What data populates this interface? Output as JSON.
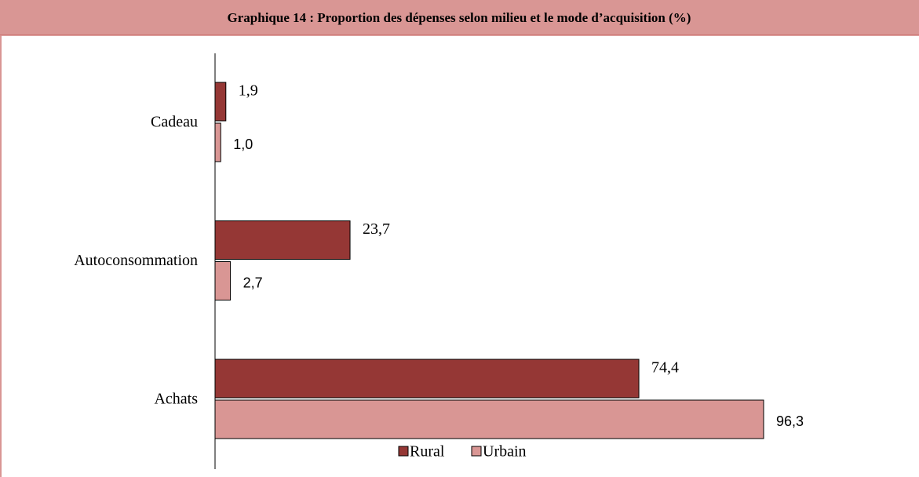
{
  "chart_data": {
    "type": "bar",
    "orientation": "horizontal",
    "title": "Graphique 14 : Proportion des dépenses selon  milieu et le mode d’acquisition (%)",
    "categories": [
      "Cadeau",
      "Autoconsommation",
      "Achats"
    ],
    "series": [
      {
        "name": "Rural",
        "color": "#953735",
        "values": [
          1.9,
          23.7,
          74.4
        ],
        "value_labels": [
          "1,9",
          "23,7",
          "74,4"
        ]
      },
      {
        "name": "Urbain",
        "color": "#d99694",
        "values": [
          1.0,
          2.7,
          96.3
        ],
        "value_labels": [
          "1,0",
          "2,7",
          "96,3"
        ]
      }
    ],
    "legend": "bottom"
  }
}
